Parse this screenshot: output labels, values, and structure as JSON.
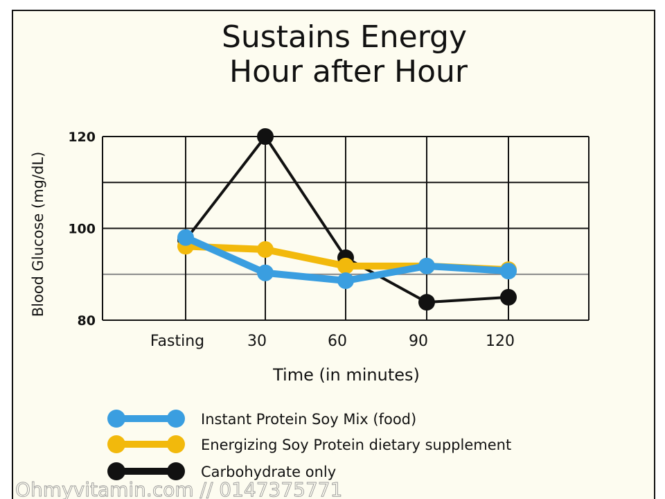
{
  "chart_data": {
    "type": "line",
    "title": "Sustains Energy",
    "subtitle": "Hour after Hour",
    "xlabel": "Time (in minutes)",
    "ylabel": "Blood Glucose (mg/dL)",
    "categories": [
      "Fasting",
      "30",
      "60",
      "90",
      "120"
    ],
    "yticks": [
      "80",
      "100",
      "120"
    ],
    "ylim": [
      80,
      120
    ],
    "grid": true,
    "legend_position": "bottom-left",
    "series": [
      {
        "name": "Instant Protein Soy Mix (food)",
        "color": "#3a9ee0",
        "values": [
          98,
          90.3,
          88.6,
          91.8,
          90.7
        ]
      },
      {
        "name": "Energizing Soy Protein dietary supplement",
        "color": "#f2b90c",
        "values": [
          96.1,
          95.4,
          91.8,
          91.8,
          91
        ]
      },
      {
        "name": "Carbohydrate only",
        "color": "#111111",
        "values": [
          97.5,
          120,
          93.6,
          83.9,
          85
        ]
      }
    ]
  },
  "watermark": "Ohmyvitamin.com  // 0147375771"
}
